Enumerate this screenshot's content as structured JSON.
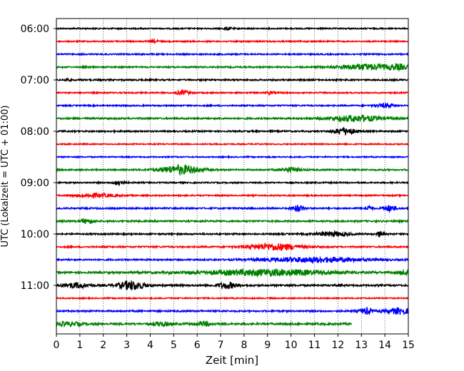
{
  "chart_data": {
    "type": "line",
    "xlabel": "Zeit  [min]",
    "ylabel": "UTC (Lokalzeit = UTC + 01:00)",
    "xlim": [
      0,
      15
    ],
    "x_ticks": [
      0,
      1,
      2,
      3,
      4,
      5,
      6,
      7,
      8,
      9,
      10,
      11,
      12,
      13,
      14,
      15
    ],
    "x_tick_labels": [
      "0",
      "1",
      "2",
      "3",
      "4",
      "5",
      "6",
      "7",
      "8",
      "9",
      "10",
      "11",
      "12",
      "13",
      "14",
      "15"
    ],
    "y_tick_labels": [
      "06:00",
      "07:00",
      "08:00",
      "09:00",
      "10:00",
      "11:00"
    ],
    "grid": "vertical dotted",
    "colors": [
      "#000000",
      "#ff0000",
      "#0000ff",
      "#008000"
    ],
    "traces": [
      {
        "start": "06:00",
        "color": "#000000",
        "end_min": 15,
        "noise": 0.9,
        "bursts": [
          [
            7.3,
            2.0,
            0.1
          ]
        ]
      },
      {
        "start": "06:15",
        "color": "#ff0000",
        "end_min": 15,
        "noise": 0.9,
        "bursts": [
          [
            4.2,
            2.0,
            0.1
          ]
        ]
      },
      {
        "start": "06:30",
        "color": "#0000ff",
        "end_min": 15,
        "noise": 0.9,
        "bursts": []
      },
      {
        "start": "06:45",
        "color": "#008000",
        "end_min": 15,
        "noise": 1.0,
        "bursts": [
          [
            13.2,
            4.0,
            0.8
          ],
          [
            14.6,
            3.0,
            0.3
          ]
        ]
      },
      {
        "start": "07:00",
        "color": "#000000",
        "end_min": 15,
        "noise": 1.0,
        "bursts": [
          [
            0.5,
            1.5,
            0.1
          ]
        ]
      },
      {
        "start": "07:15",
        "color": "#ff0000",
        "end_min": 15,
        "noise": 0.9,
        "bursts": [
          [
            5.4,
            3.0,
            0.2
          ],
          [
            9.1,
            2.0,
            0.1
          ]
        ]
      },
      {
        "start": "07:30",
        "color": "#0000ff",
        "end_min": 15,
        "noise": 0.9,
        "bursts": [
          [
            14.0,
            2.5,
            0.3
          ]
        ]
      },
      {
        "start": "07:45",
        "color": "#008000",
        "end_min": 15,
        "noise": 1.1,
        "bursts": [
          [
            12.8,
            4.0,
            0.8
          ]
        ]
      },
      {
        "start": "08:00",
        "color": "#000000",
        "end_min": 15,
        "noise": 1.0,
        "bursts": [
          [
            12.3,
            5.0,
            0.3
          ]
        ]
      },
      {
        "start": "08:15",
        "color": "#ff0000",
        "end_min": 15,
        "noise": 0.8,
        "bursts": []
      },
      {
        "start": "08:30",
        "color": "#0000ff",
        "end_min": 15,
        "noise": 0.8,
        "bursts": []
      },
      {
        "start": "08:45",
        "color": "#008000",
        "end_min": 15,
        "noise": 1.0,
        "bursts": [
          [
            5.3,
            6.0,
            0.6
          ],
          [
            10.0,
            3.0,
            0.3
          ]
        ]
      },
      {
        "start": "09:00",
        "color": "#000000",
        "end_min": 15,
        "noise": 0.9,
        "bursts": [
          [
            2.7,
            4.0,
            0.15
          ]
        ]
      },
      {
        "start": "09:15",
        "color": "#ff0000",
        "end_min": 15,
        "noise": 0.9,
        "bursts": [
          [
            1.7,
            2.5,
            0.6
          ]
        ]
      },
      {
        "start": "09:30",
        "color": "#0000ff",
        "end_min": 15,
        "noise": 1.0,
        "bursts": [
          [
            10.3,
            4.0,
            0.2
          ],
          [
            13.3,
            3.5,
            0.1
          ],
          [
            14.2,
            4.0,
            0.2
          ]
        ]
      },
      {
        "start": "09:45",
        "color": "#008000",
        "end_min": 15,
        "noise": 1.1,
        "bursts": [
          [
            1.3,
            3.0,
            0.2
          ]
        ]
      },
      {
        "start": "10:00",
        "color": "#000000",
        "end_min": 15,
        "noise": 1.0,
        "bursts": [
          [
            11.8,
            3.0,
            0.5
          ],
          [
            13.8,
            4.0,
            0.1
          ]
        ]
      },
      {
        "start": "10:15",
        "color": "#ff0000",
        "end_min": 15,
        "noise": 1.0,
        "bursts": [
          [
            9.3,
            4.5,
            0.8
          ]
        ]
      },
      {
        "start": "10:30",
        "color": "#0000ff",
        "end_min": 15,
        "noise": 1.0,
        "bursts": [
          [
            11.0,
            3.5,
            1.5
          ]
        ]
      },
      {
        "start": "10:45",
        "color": "#008000",
        "end_min": 15,
        "noise": 1.3,
        "bursts": [
          [
            9.0,
            4.0,
            2.0
          ],
          [
            14.9,
            3.0,
            0.2
          ]
        ]
      },
      {
        "start": "11:00",
        "color": "#000000",
        "end_min": 15,
        "noise": 1.2,
        "bursts": [
          [
            0.8,
            3.5,
            0.4
          ],
          [
            3.2,
            6.0,
            0.4
          ],
          [
            7.3,
            4.0,
            0.3
          ]
        ]
      },
      {
        "start": "11:15",
        "color": "#ff0000",
        "end_min": 15,
        "noise": 0.8,
        "bursts": []
      },
      {
        "start": "11:30",
        "color": "#0000ff",
        "end_min": 15,
        "noise": 1.1,
        "bursts": [
          [
            13.2,
            4.0,
            0.2
          ],
          [
            14.6,
            4.0,
            0.4
          ]
        ]
      },
      {
        "start": "11:45",
        "color": "#008000",
        "end_min": 12.6,
        "noise": 1.3,
        "bursts": [
          [
            0.5,
            2.5,
            0.4
          ],
          [
            4.5,
            2.5,
            0.3
          ],
          [
            6.3,
            2.5,
            0.3
          ]
        ]
      }
    ]
  }
}
